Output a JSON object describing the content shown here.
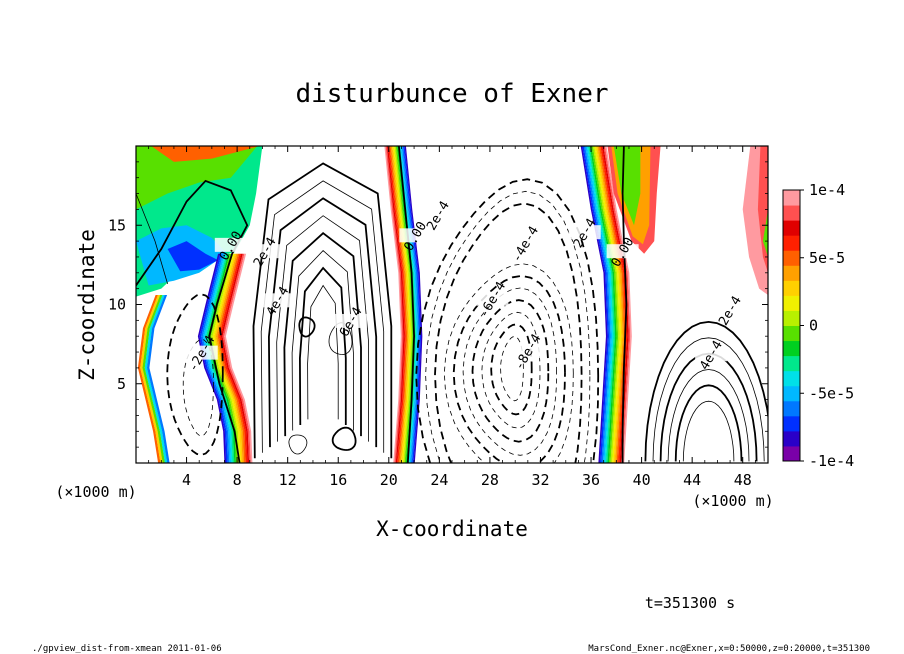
{
  "chart_data": {
    "type": "heatmap",
    "title": "disturbunce of Exner",
    "xlabel": "X-coordinate",
    "ylabel": "Z-coordinate",
    "x_unit_label": "(×1000 m)",
    "y_unit_label": "(×1000 m)",
    "xlim": [
      0,
      50
    ],
    "ylim": [
      0,
      20
    ],
    "x_ticks": [
      4,
      8,
      12,
      16,
      20,
      24,
      28,
      32,
      36,
      40,
      44,
      48
    ],
    "x_tick_labels": [
      "4",
      "8",
      "12",
      "16",
      "20",
      "24",
      "28",
      "32",
      "36",
      "40",
      "44",
      "48"
    ],
    "y_ticks": [
      5,
      10,
      15
    ],
    "y_tick_labels": [
      "5",
      "10",
      "15"
    ],
    "colorbar": {
      "range": [
        -0.0001,
        0.0001
      ],
      "tick_values": [
        0.0001,
        5e-05,
        0,
        -5e-05,
        -0.0001
      ],
      "tick_labels": [
        "1e-4",
        "5e-5",
        "0",
        "-5e-5",
        "-1e-4"
      ],
      "colors": [
        "#7a00a8",
        "#2a00c8",
        "#0030ff",
        "#0078ff",
        "#00b8ff",
        "#00e0e8",
        "#00e88c",
        "#00d020",
        "#58e000",
        "#b8f000",
        "#f0f000",
        "#ffd000",
        "#ffa000",
        "#ff6000",
        "#ff2000",
        "#e00000",
        "#ff5050",
        "#ff9aa0"
      ]
    },
    "contour_labels": [
      {
        "text": "0.00",
        "x": 7.5,
        "z": 13.7
      },
      {
        "text": "-2e-4",
        "x": 5.2,
        "z": 6.9
      },
      {
        "text": "2e-4",
        "x": 10.2,
        "z": 13.3
      },
      {
        "text": "4e-4",
        "x": 11.2,
        "z": 10.2
      },
      {
        "text": "6e-4",
        "x": 17.0,
        "z": 8.9
      },
      {
        "text": "0.00",
        "x": 22.1,
        "z": 14.3
      },
      {
        "text": "2e-4",
        "x": 23.9,
        "z": 15.6
      },
      {
        "text": "-4e-4",
        "x": 30.8,
        "z": 13.8
      },
      {
        "text": "2e-4",
        "x": 35.5,
        "z": 14.5
      },
      {
        "text": "0.00",
        "x": 38.5,
        "z": 13.3
      },
      {
        "text": "-6e-4",
        "x": 28.2,
        "z": 10.3
      },
      {
        "text": "-8e-4",
        "x": 31.0,
        "z": 7.0
      },
      {
        "text": "2e-4",
        "x": 47.0,
        "z": 9.6
      },
      {
        "text": "4e-4",
        "x": 45.5,
        "z": 6.8
      }
    ]
  },
  "annotations": {
    "time": "t=351300 s",
    "footer_left": "./gpview_dist-from-xmean  2011-01-06",
    "footer_right": "MarsCond_Exner.nc@Exner,x=0:50000,z=0:20000,t=351300"
  }
}
